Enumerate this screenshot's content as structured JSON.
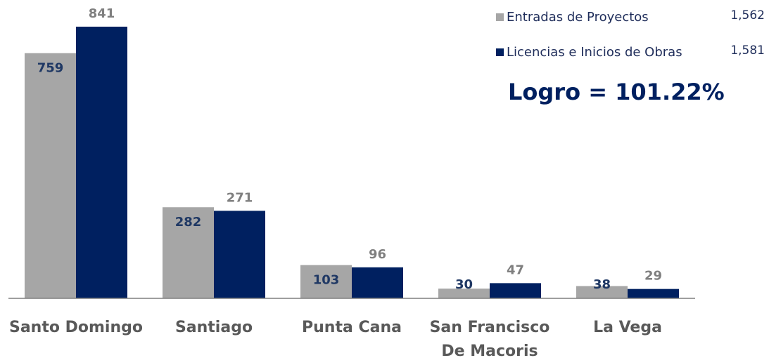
{
  "chart_data": {
    "type": "bar",
    "categories": [
      "Santo Domingo",
      "Santiago",
      "Punta Cana",
      "San Francisco De Macoris",
      "La Vega"
    ],
    "series": [
      {
        "name": "Entradas de Proyectos",
        "color": "#a6a6a6",
        "values": [
          759,
          282,
          103,
          30,
          38
        ],
        "total": 1562,
        "total_label": "1,562"
      },
      {
        "name": "Licencias e Inicios de Obras",
        "color": "#002060",
        "values": [
          841,
          271,
          96,
          47,
          29
        ],
        "total": 1581,
        "total_label": "1,581"
      }
    ],
    "annotation": "Logro =  101.22%",
    "legend": "top-right"
  }
}
